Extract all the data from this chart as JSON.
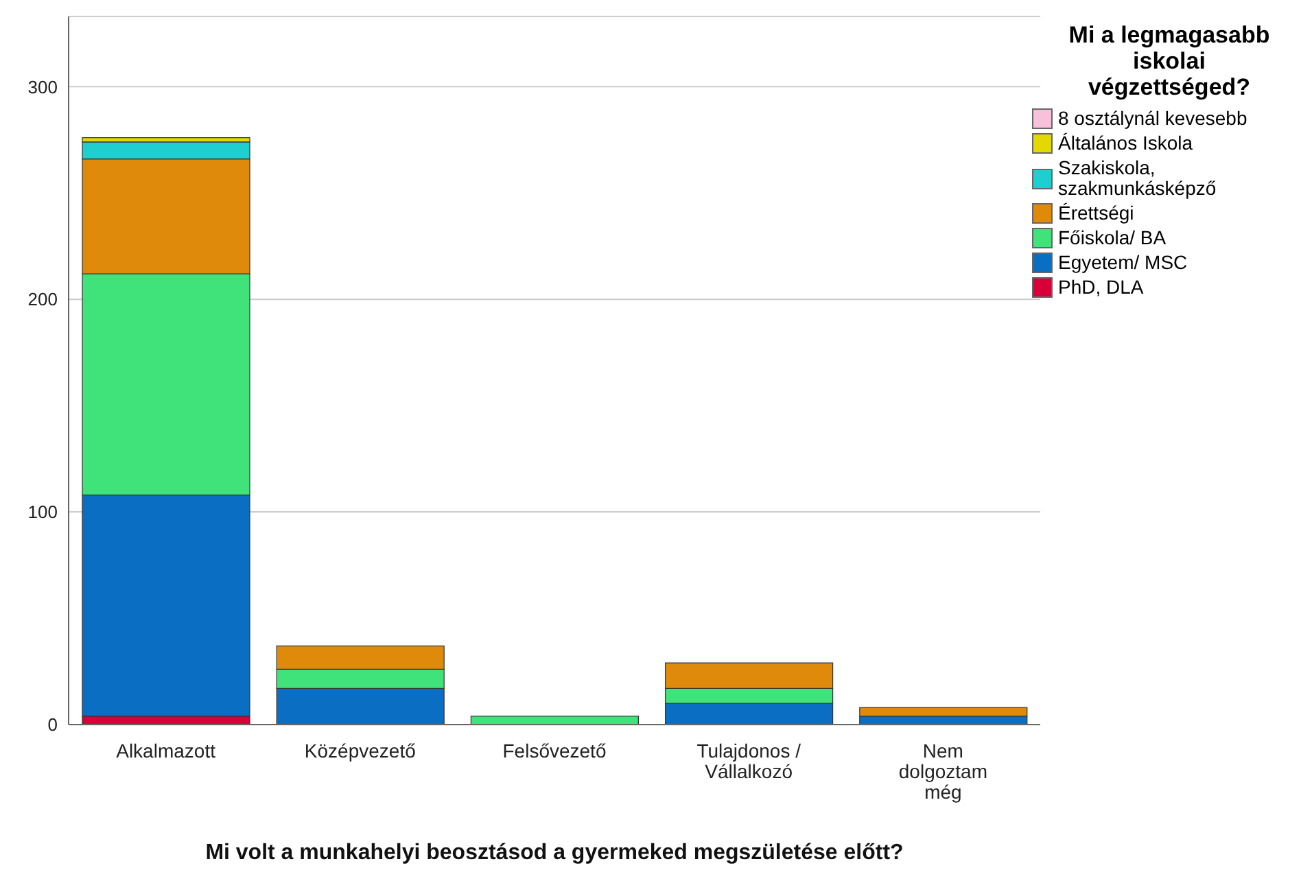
{
  "chart_data": {
    "type": "bar",
    "stacked": true,
    "xlabel": "Mi volt a munkahelyi beosztásod a gyermeked megszületése előtt?",
    "legend_title": "Mi a legmagasabb iskolai végzettséged?",
    "categories": [
      "Alkalmazott",
      "Középvezető",
      "Felsővezető",
      "Tulajdonos / Vállalkozó",
      "Nem dolgoztam még"
    ],
    "series": [
      {
        "name": "PhD, DLA",
        "color": "#d9003a",
        "values": [
          4,
          0,
          0,
          0,
          0
        ]
      },
      {
        "name": "Egyetem/ MSC",
        "color": "#0a6fc2",
        "values": [
          104,
          17,
          0,
          10,
          4
        ]
      },
      {
        "name": "Főiskola/ BA",
        "color": "#3fe37a",
        "values": [
          104,
          9,
          4,
          7,
          0
        ]
      },
      {
        "name": "Érettségi",
        "color": "#e08a0c",
        "values": [
          54,
          11,
          0,
          12,
          4
        ]
      },
      {
        "name": "Szakiskola, szakmunkásképző",
        "color": "#1fcfcf",
        "values": [
          8,
          0,
          0,
          0,
          0
        ]
      },
      {
        "name": "Általános Iskola",
        "color": "#e3d800",
        "values": [
          2,
          0,
          0,
          0,
          0
        ]
      },
      {
        "name": "8 osztálynál kevesebb",
        "color": "#f9c0dc",
        "values": [
          0,
          0,
          0,
          0,
          0
        ]
      }
    ],
    "ylim": [
      0,
      333
    ],
    "yticks": [
      0,
      100,
      200,
      300
    ],
    "grid": "y",
    "legend": "top right"
  }
}
